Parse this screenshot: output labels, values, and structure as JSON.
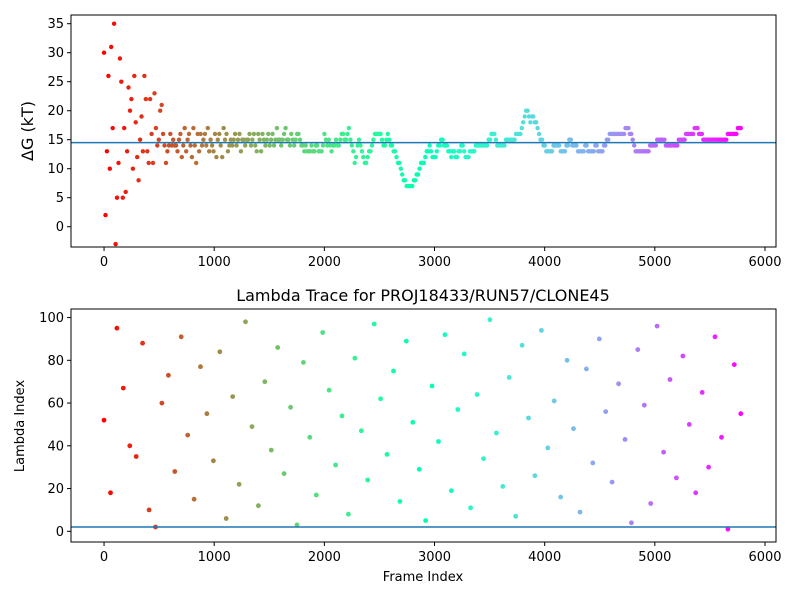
{
  "chart_data": [
    {
      "type": "scatter",
      "title": "",
      "xlabel": "",
      "ylabel": "ΔG (kT)",
      "xlim": [
        -300,
        6100
      ],
      "ylim": [
        -3.5,
        36.5
      ],
      "xticks": [
        0,
        1000,
        2000,
        3000,
        4000,
        5000,
        6000
      ],
      "yticks": [
        0,
        5,
        10,
        15,
        20,
        25,
        30,
        35
      ],
      "hline": 14.5,
      "hline_color": "#1f77b4",
      "colormap": "rainbow (red at frame 0 → violet at last frame)",
      "n_frames": 5780,
      "x_step": 10,
      "series": [
        {
          "values": [
            30,
            2,
            13,
            26,
            10,
            31,
            17,
            35,
            -3,
            5,
            11,
            29,
            25,
            5,
            17,
            6,
            13,
            24,
            20,
            22,
            10,
            26,
            18,
            12,
            8,
            15,
            19,
            13,
            26,
            22,
            13,
            11,
            22,
            16,
            11,
            23,
            17,
            14,
            15,
            20,
            21,
            16,
            14,
            11,
            13,
            14,
            16,
            14,
            15,
            14,
            14,
            13,
            15,
            16,
            12,
            14,
            17,
            13,
            15,
            16,
            14,
            12,
            17,
            14,
            11,
            16,
            13,
            16,
            14,
            15,
            16,
            14,
            17,
            13,
            15,
            14,
            13,
            16,
            12,
            15,
            16,
            14,
            12,
            17,
            15,
            16,
            13,
            14,
            15,
            14,
            15,
            16,
            14,
            15,
            16,
            13,
            15,
            15,
            14,
            15,
            15,
            16,
            14,
            15,
            16,
            14,
            13,
            16,
            15,
            13,
            16,
            15,
            14,
            15,
            16,
            14,
            15,
            16,
            14,
            15,
            17,
            15,
            15,
            14,
            15,
            16,
            17,
            15,
            15,
            14,
            16,
            15,
            14,
            15,
            16,
            16,
            15,
            14,
            14,
            13,
            14,
            13,
            13,
            13,
            14,
            13,
            13,
            14,
            14,
            13,
            13,
            13,
            14,
            16,
            15,
            14,
            15,
            14,
            13,
            14,
            14,
            15,
            14,
            14,
            15,
            16,
            16,
            15,
            15,
            16,
            17,
            15,
            14,
            13,
            11,
            12,
            14,
            15,
            14,
            13,
            12,
            11,
            11,
            12,
            13,
            13,
            14,
            15,
            16,
            16,
            16,
            16,
            16,
            15,
            14,
            14,
            15,
            16,
            15,
            14,
            14,
            13,
            13,
            12,
            11,
            11,
            10,
            9,
            8,
            8,
            7,
            7,
            7,
            7,
            7,
            8,
            8,
            9,
            9,
            10,
            11,
            11,
            11,
            12,
            13,
            13,
            14,
            13,
            12,
            12,
            12,
            13,
            14,
            14,
            15,
            15,
            14,
            14,
            14,
            13,
            13,
            12,
            13,
            13,
            12,
            12,
            13,
            13,
            14,
            14,
            13,
            12,
            12,
            12,
            13,
            13,
            13,
            13,
            14,
            14,
            14,
            14,
            14,
            14,
            14,
            14,
            14,
            15,
            15,
            16,
            16,
            16,
            15,
            14,
            14,
            14,
            14,
            14,
            14,
            15,
            15,
            15,
            15,
            15,
            15,
            15,
            16,
            16,
            16,
            16,
            17,
            18,
            19,
            20,
            20,
            19,
            18,
            19,
            19,
            18,
            18,
            17,
            16,
            15,
            15,
            14,
            14,
            13,
            13,
            13,
            13,
            13,
            14,
            14,
            14,
            14,
            14,
            13,
            13,
            13,
            13,
            14,
            14,
            15,
            15,
            14,
            14,
            14,
            14,
            13,
            13,
            13,
            13,
            13,
            14,
            14,
            13,
            13,
            13,
            13,
            13,
            14,
            14,
            13,
            13,
            13,
            13,
            14,
            14,
            15,
            15,
            16,
            16,
            16,
            16,
            16,
            16,
            16,
            16,
            16,
            16,
            16,
            17,
            17,
            17,
            16,
            16,
            15,
            14,
            13,
            13,
            13,
            13,
            13,
            13,
            13,
            13,
            13,
            13,
            14,
            14,
            14,
            14,
            14,
            15,
            15,
            15,
            15,
            15,
            15,
            14,
            14,
            14,
            14,
            14,
            14,
            14,
            14,
            14,
            15,
            15,
            15,
            15,
            15,
            16,
            16,
            16,
            16,
            16,
            16,
            17,
            17,
            17,
            16,
            16,
            16,
            15,
            15,
            15,
            15,
            15,
            15,
            15,
            15,
            15,
            15,
            15,
            15,
            15,
            15,
            15,
            15,
            15,
            16,
            16,
            16,
            16,
            16,
            16,
            16,
            17,
            17,
            17
          ]
        }
      ]
    },
    {
      "type": "scatter",
      "title": "Lambda Trace for PROJ18433/RUN57/CLONE45",
      "xlabel": "Frame Index",
      "ylabel": "Lambda Index",
      "xlim": [
        -300,
        6100
      ],
      "ylim": [
        -5,
        104
      ],
      "xticks": [
        0,
        1000,
        2000,
        3000,
        4000,
        5000,
        6000
      ],
      "yticks": [
        0,
        20,
        40,
        60,
        80,
        100
      ],
      "hline": 2,
      "hline_color": "#1f77b4",
      "colormap": "rainbow (red at frame 0 → violet at last frame)",
      "n_frames": 5780,
      "x_step": 1,
      "series": [
        {
          "values": [
            52,
            18,
            95,
            67,
            40,
            35,
            88,
            10,
            2,
            60,
            73,
            28,
            91,
            45,
            15,
            77,
            55,
            33,
            84,
            6,
            63,
            22,
            98,
            49,
            12,
            70,
            38,
            86,
            27,
            58,
            3,
            79,
            44,
            17,
            93,
            66,
            31,
            54,
            8,
            81,
            47,
            24,
            97,
            62,
            36,
            75,
            14,
            89,
            51,
            29,
            5,
            68,
            42,
            92,
            19,
            57,
            83,
            11,
            64,
            34,
            99,
            46,
            21,
            72,
            7,
            87,
            53,
            26,
            94,
            39,
            61,
            16,
            80,
            48,
            9,
            76,
            32,
            90,
            56,
            23,
            69,
            43,
            4,
            85,
            59,
            13,
            96,
            37,
            71,
            25,
            82,
            50,
            18,
            65,
            30,
            91,
            44,
            1,
            78,
            55
          ]
        }
      ]
    }
  ]
}
